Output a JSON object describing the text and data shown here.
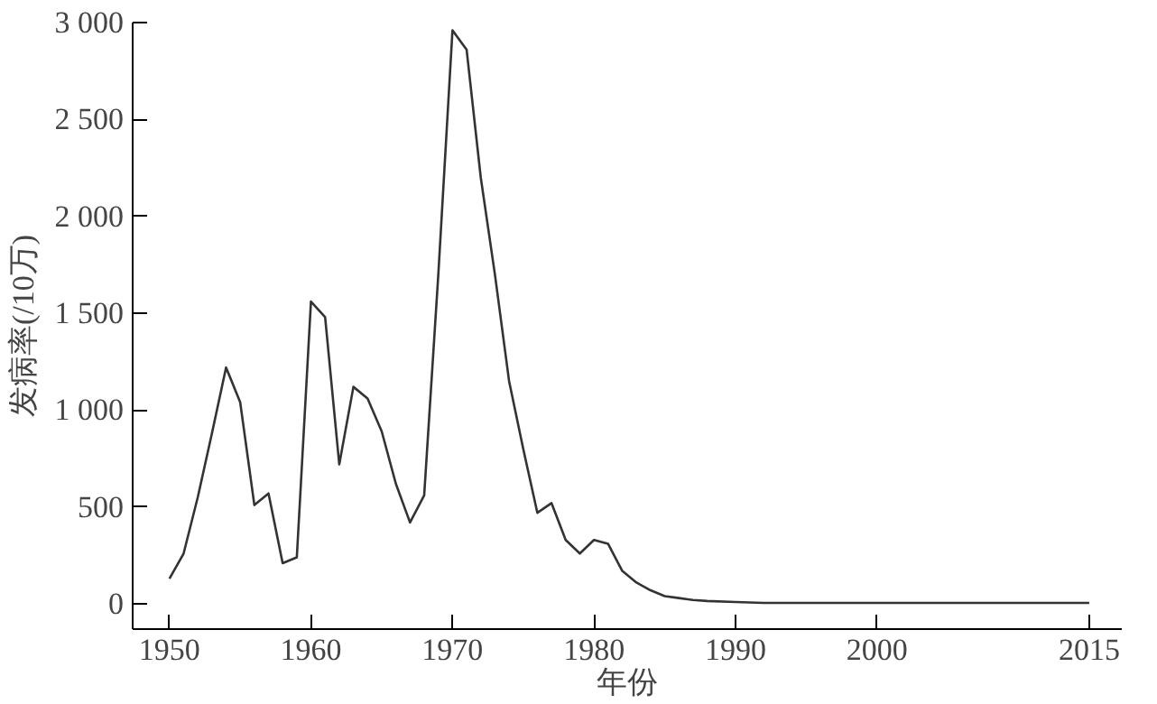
{
  "chart_data": {
    "type": "line",
    "xlabel": "年份",
    "ylabel": "发病率(/10万)",
    "x": [
      1950,
      1951,
      1952,
      1953,
      1954,
      1955,
      1956,
      1957,
      1958,
      1959,
      1960,
      1961,
      1962,
      1963,
      1964,
      1965,
      1966,
      1967,
      1968,
      1969,
      1970,
      1971,
      1972,
      1973,
      1974,
      1975,
      1976,
      1977,
      1978,
      1979,
      1980,
      1981,
      1982,
      1983,
      1984,
      1985,
      1986,
      1987,
      1988,
      1990,
      1992,
      2000,
      2015
    ],
    "series": [
      {
        "color": "#333333",
        "values": [
          130,
          260,
          550,
          880,
          1220,
          1040,
          510,
          570,
          210,
          240,
          1560,
          1480,
          720,
          1120,
          1060,
          890,
          620,
          420,
          560,
          1700,
          2960,
          2860,
          2200,
          1700,
          1150,
          800,
          470,
          520,
          330,
          260,
          330,
          310,
          170,
          110,
          70,
          40,
          30,
          20,
          15,
          10,
          5,
          5,
          5
        ]
      }
    ],
    "xlim": [
      1947.4,
      2017.3
    ],
    "ylim": [
      -130,
      3000
    ],
    "xticks": [
      1950,
      1960,
      1970,
      1980,
      1990,
      2000,
      2015
    ],
    "yticks": [
      {
        "value": 0,
        "label": "0"
      },
      {
        "value": 500,
        "label": "500"
      },
      {
        "value": 1000,
        "label": "1 000"
      },
      {
        "value": 1500,
        "label": "1 500"
      },
      {
        "value": 2000,
        "label": "2 000"
      },
      {
        "value": 2500,
        "label": "2 500"
      },
      {
        "value": 3000,
        "label": "3 000"
      }
    ],
    "marker": "none",
    "line_style": "solid"
  }
}
